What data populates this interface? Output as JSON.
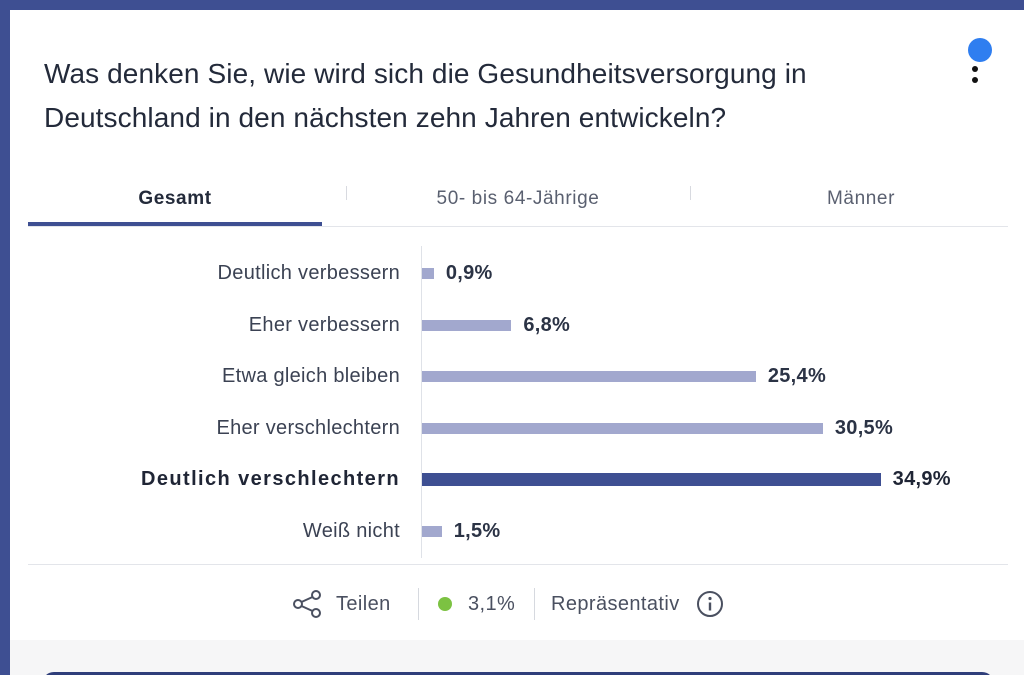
{
  "poll": {
    "question": "Was denken Sie, wie wird sich die Gesundheitsversorgung in Deutschland in den nächsten zehn Jahren entwickeln?"
  },
  "tabs": [
    {
      "label": "Gesamt",
      "active": true
    },
    {
      "label": "50- bis 64-Jährige",
      "active": false
    },
    {
      "label": "Männer",
      "active": false
    }
  ],
  "chart_data": {
    "type": "bar",
    "orientation": "horizontal",
    "categories": [
      "Deutlich verbessern",
      "Eher verbessern",
      "Etwa gleich bleiben",
      "Eher verschlechtern",
      "Deutlich verschlechtern",
      "Weiß nicht"
    ],
    "values": [
      0.9,
      6.8,
      25.4,
      30.5,
      34.9,
      1.5
    ],
    "value_labels": [
      "0,9%",
      "6,8%",
      "25,4%",
      "30,5%",
      "34,9%",
      "1,5%"
    ],
    "highlighted": "Deutlich verschlechtern",
    "unit": "%",
    "xlim": [
      0,
      35
    ]
  },
  "footer": {
    "share_label": "Teilen",
    "error_margin": "3,1%",
    "representative_label": "Repräsentativ"
  },
  "colors": {
    "accent": "#3e4f92",
    "bar": "#a2a8ce",
    "status_green": "#7cc242",
    "notification": "#2f7ef0"
  },
  "icons": {
    "share": "share-icon",
    "info": "info-icon",
    "menu": "kebab-menu-icon"
  }
}
